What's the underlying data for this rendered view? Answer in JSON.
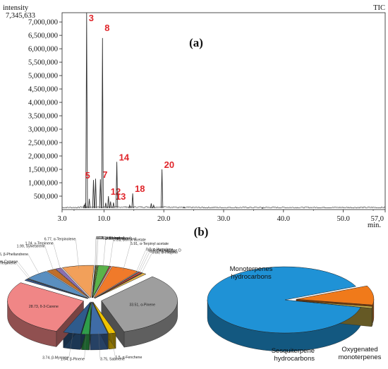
{
  "chart_data": [
    {
      "type": "line",
      "title": "(a)",
      "ylabel": "intensity",
      "xlabel": "min.",
      "corner_label": "TIC",
      "max_label": "7,345,633",
      "xlim": [
        3.0,
        57.0
      ],
      "ylim": [
        0,
        7345633
      ],
      "xticks": [
        3.0,
        10.0,
        20.0,
        30.0,
        40.0,
        50.0,
        57.0
      ],
      "xtick_labels": [
        "3.0",
        "10.0",
        "20.0",
        "30.0",
        "40.0",
        "50.0",
        "57,0"
      ],
      "yticks": [
        500000,
        1000000,
        1500000,
        2000000,
        2500000,
        3000000,
        3500000,
        4000000,
        4500000,
        5000000,
        5500000,
        6000000,
        6500000,
        7000000
      ],
      "ytick_labels": [
        "500,000",
        "1,000,000",
        "1,500,000",
        "2,000,000",
        "2,500,000",
        "3,000,000",
        "3,500,000",
        "4,000,000",
        "4,500,000",
        "5,000,000",
        "5,500,000",
        "6,000,000",
        "6,500,000",
        "7,000,000"
      ],
      "peaks": [
        {
          "x": 6.7,
          "y": 180000
        },
        {
          "x": 6.9,
          "y": 250000
        },
        {
          "x": 7.1,
          "y": 7345633,
          "label": "3"
        },
        {
          "x": 7.55,
          "y": 400000
        },
        {
          "x": 8.25,
          "y": 1100000,
          "label": "5"
        },
        {
          "x": 8.6,
          "y": 1150000
        },
        {
          "x": 9.4,
          "y": 1130000,
          "label": "7"
        },
        {
          "x": 9.75,
          "y": 6400000,
          "label": "8"
        },
        {
          "x": 10.3,
          "y": 250000
        },
        {
          "x": 10.75,
          "y": 500000,
          "label": "12"
        },
        {
          "x": 11.1,
          "y": 300000
        },
        {
          "x": 11.6,
          "y": 260000,
          "label": "13"
        },
        {
          "x": 12.15,
          "y": 1780000,
          "label": "14"
        },
        {
          "x": 14.3,
          "y": 160000
        },
        {
          "x": 14.8,
          "y": 600000,
          "label": "18"
        },
        {
          "x": 17.9,
          "y": 230000
        },
        {
          "x": 18.3,
          "y": 160000
        },
        {
          "x": 19.7,
          "y": 1500000,
          "label": "20"
        },
        {
          "x": 23.4,
          "y": 90000
        },
        {
          "x": 36.5,
          "y": 50000
        }
      ]
    },
    {
      "type": "pie",
      "title": "(b)",
      "slices": [
        {
          "label": "33.51, α-Pinene",
          "value": 33.51,
          "color": "#9e9e9e"
        },
        {
          "label": "1.5, α-Fenchene",
          "value": 1.5,
          "color": "#f0c400"
        },
        {
          "label": "3.75, Sabinene",
          "value": 3.75,
          "color": "#3f6ca6"
        },
        {
          "label": "1.64, β-Pinene",
          "value": 1.64,
          "color": "#2e9e4a"
        },
        {
          "label": "3.74, β-Myrcene",
          "value": 3.74,
          "color": "#2f5b8c"
        },
        {
          "label": "28.73, δ-3-Carene",
          "value": 28.73,
          "color": "#f08686"
        },
        {
          "label": "0.84, α-Terpinene",
          "value": 0.84,
          "color": "#3c5a8a"
        },
        {
          "label": "0.11, m-Cymene",
          "value": 0.11,
          "color": "#6b8e3f"
        },
        {
          "label": "5.16, β-Phellandrene",
          "value": 5.16,
          "color": "#5a8fc0"
        },
        {
          "label": "1.99, Sylvestrene",
          "value": 1.99,
          "color": "#c06e2a"
        },
        {
          "label": "1.24, γ-Terpinene",
          "value": 1.24,
          "color": "#8a6fb0"
        },
        {
          "label": "6.77, α-Terpinolene",
          "value": 6.77,
          "color": "#f2a05a"
        },
        {
          "label": "0.13, β-linalool",
          "value": 0.13,
          "color": "#4aa0c8"
        },
        {
          "label": "0.19, α-Campholenal",
          "value": 0.19,
          "color": "#d4a24c"
        },
        {
          "label": "0.26, Isoborneol",
          "value": 0.26,
          "color": "#6c9f3a"
        },
        {
          "label": "2.36, Terpinen-4-ol",
          "value": 2.36,
          "color": "#5bb34a"
        },
        {
          "label": "0.31, Bornyl acetate",
          "value": 0.31,
          "color": "#d9534f"
        },
        {
          "label": "5.91, α-Terpinyl acetate",
          "value": 5.91,
          "color": "#f07a2a"
        },
        {
          "label": "0.2, α-Humulene",
          "value": 0.2,
          "color": "#7aa6d6"
        },
        {
          "label": "0.65, Germacrene D",
          "value": 0.65,
          "color": "#c94a3a"
        },
        {
          "label": "0.17, Tricyclene",
          "value": 0.17,
          "color": "#4a7aa6"
        },
        {
          "label": "0.85, α-Thujene",
          "value": 0.85,
          "color": "#e0b04a"
        }
      ]
    },
    {
      "type": "pie",
      "slices": [
        {
          "label": "Monoterpenes hydrocarbons",
          "value": 87.91,
          "color": "#1f92d6"
        },
        {
          "label": "Oxygenated monoterpenes",
          "value": 9.2,
          "color": "#f07a1a"
        },
        {
          "label": "Sesquiterpene hydrocarbons",
          "value": 0.85,
          "color": "#c9b24a"
        }
      ]
    }
  ]
}
